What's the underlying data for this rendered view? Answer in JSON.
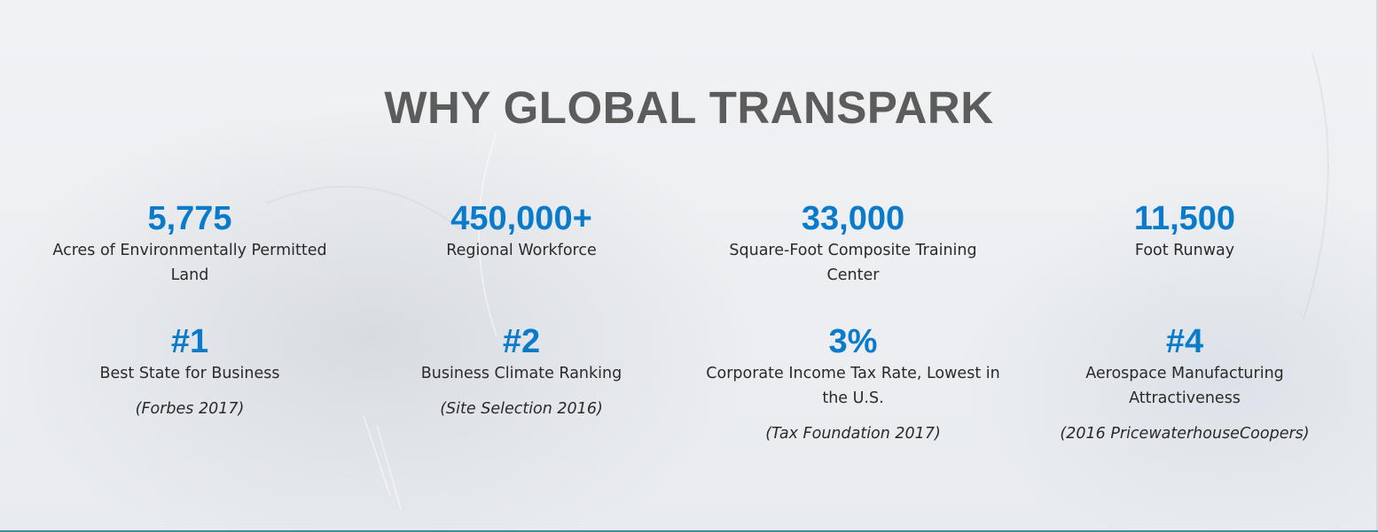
{
  "section": {
    "title": "WHY GLOBAL TRANSPARK"
  },
  "stats_row1": [
    {
      "value": "5,775",
      "label": "Acres of Environmentally Permitted Land"
    },
    {
      "value": "450,000+",
      "label": "Regional Workforce"
    },
    {
      "value": "33,000",
      "label": "Square-Foot Composite Training Center"
    },
    {
      "value": "11,500",
      "label": "Foot Runway"
    }
  ],
  "stats_row2": [
    {
      "value": "#1",
      "label": "Best State for Business",
      "source": "(Forbes 2017)"
    },
    {
      "value": "#2",
      "label": "Business Climate Ranking",
      "source": "(Site Selection 2016)"
    },
    {
      "value": "3%",
      "label": "Corporate Income Tax Rate, Lowest in the U.S.",
      "source": "(Tax Foundation 2017)"
    },
    {
      "value": "#4",
      "label": "Aerospace Manufacturing Attractiveness",
      "source": "(2016 PricewaterhouseCoopers)"
    }
  ],
  "colors": {
    "accent": "#0a7bcb",
    "title": "#5c5c5c",
    "text": "#2a2a2a",
    "rule": "#3f8e9a"
  }
}
